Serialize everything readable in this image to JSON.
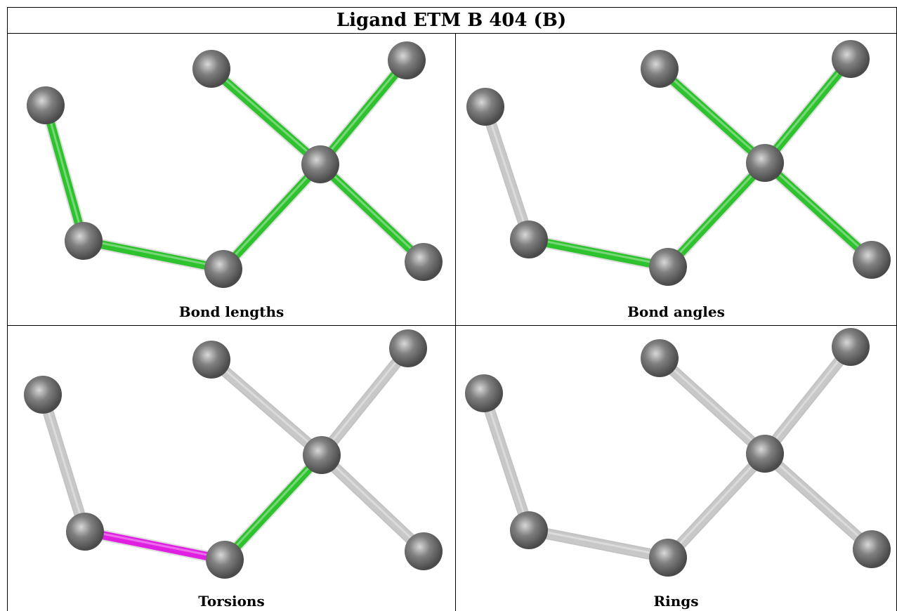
{
  "title": "Ligand ETM B 404 (B)",
  "colors": {
    "green": "#2fc22f",
    "magenta": "#e020e0",
    "grey": "#c8c8c8",
    "atom": "#808080"
  },
  "panels": [
    {
      "caption": "Bond lengths",
      "bonds": [
        "green",
        "green",
        "green",
        "green",
        "green",
        "green"
      ]
    },
    {
      "caption": "Bond angles",
      "bonds": [
        "grey",
        "green",
        "green",
        "green",
        "green",
        "green"
      ]
    },
    {
      "caption": "Torsions",
      "bonds": [
        "grey",
        "magenta",
        "green",
        "grey",
        "grey",
        "grey"
      ]
    },
    {
      "caption": "Rings",
      "bonds": [
        "grey",
        "grey",
        "grey",
        "grey",
        "grey",
        "grey"
      ]
    }
  ]
}
